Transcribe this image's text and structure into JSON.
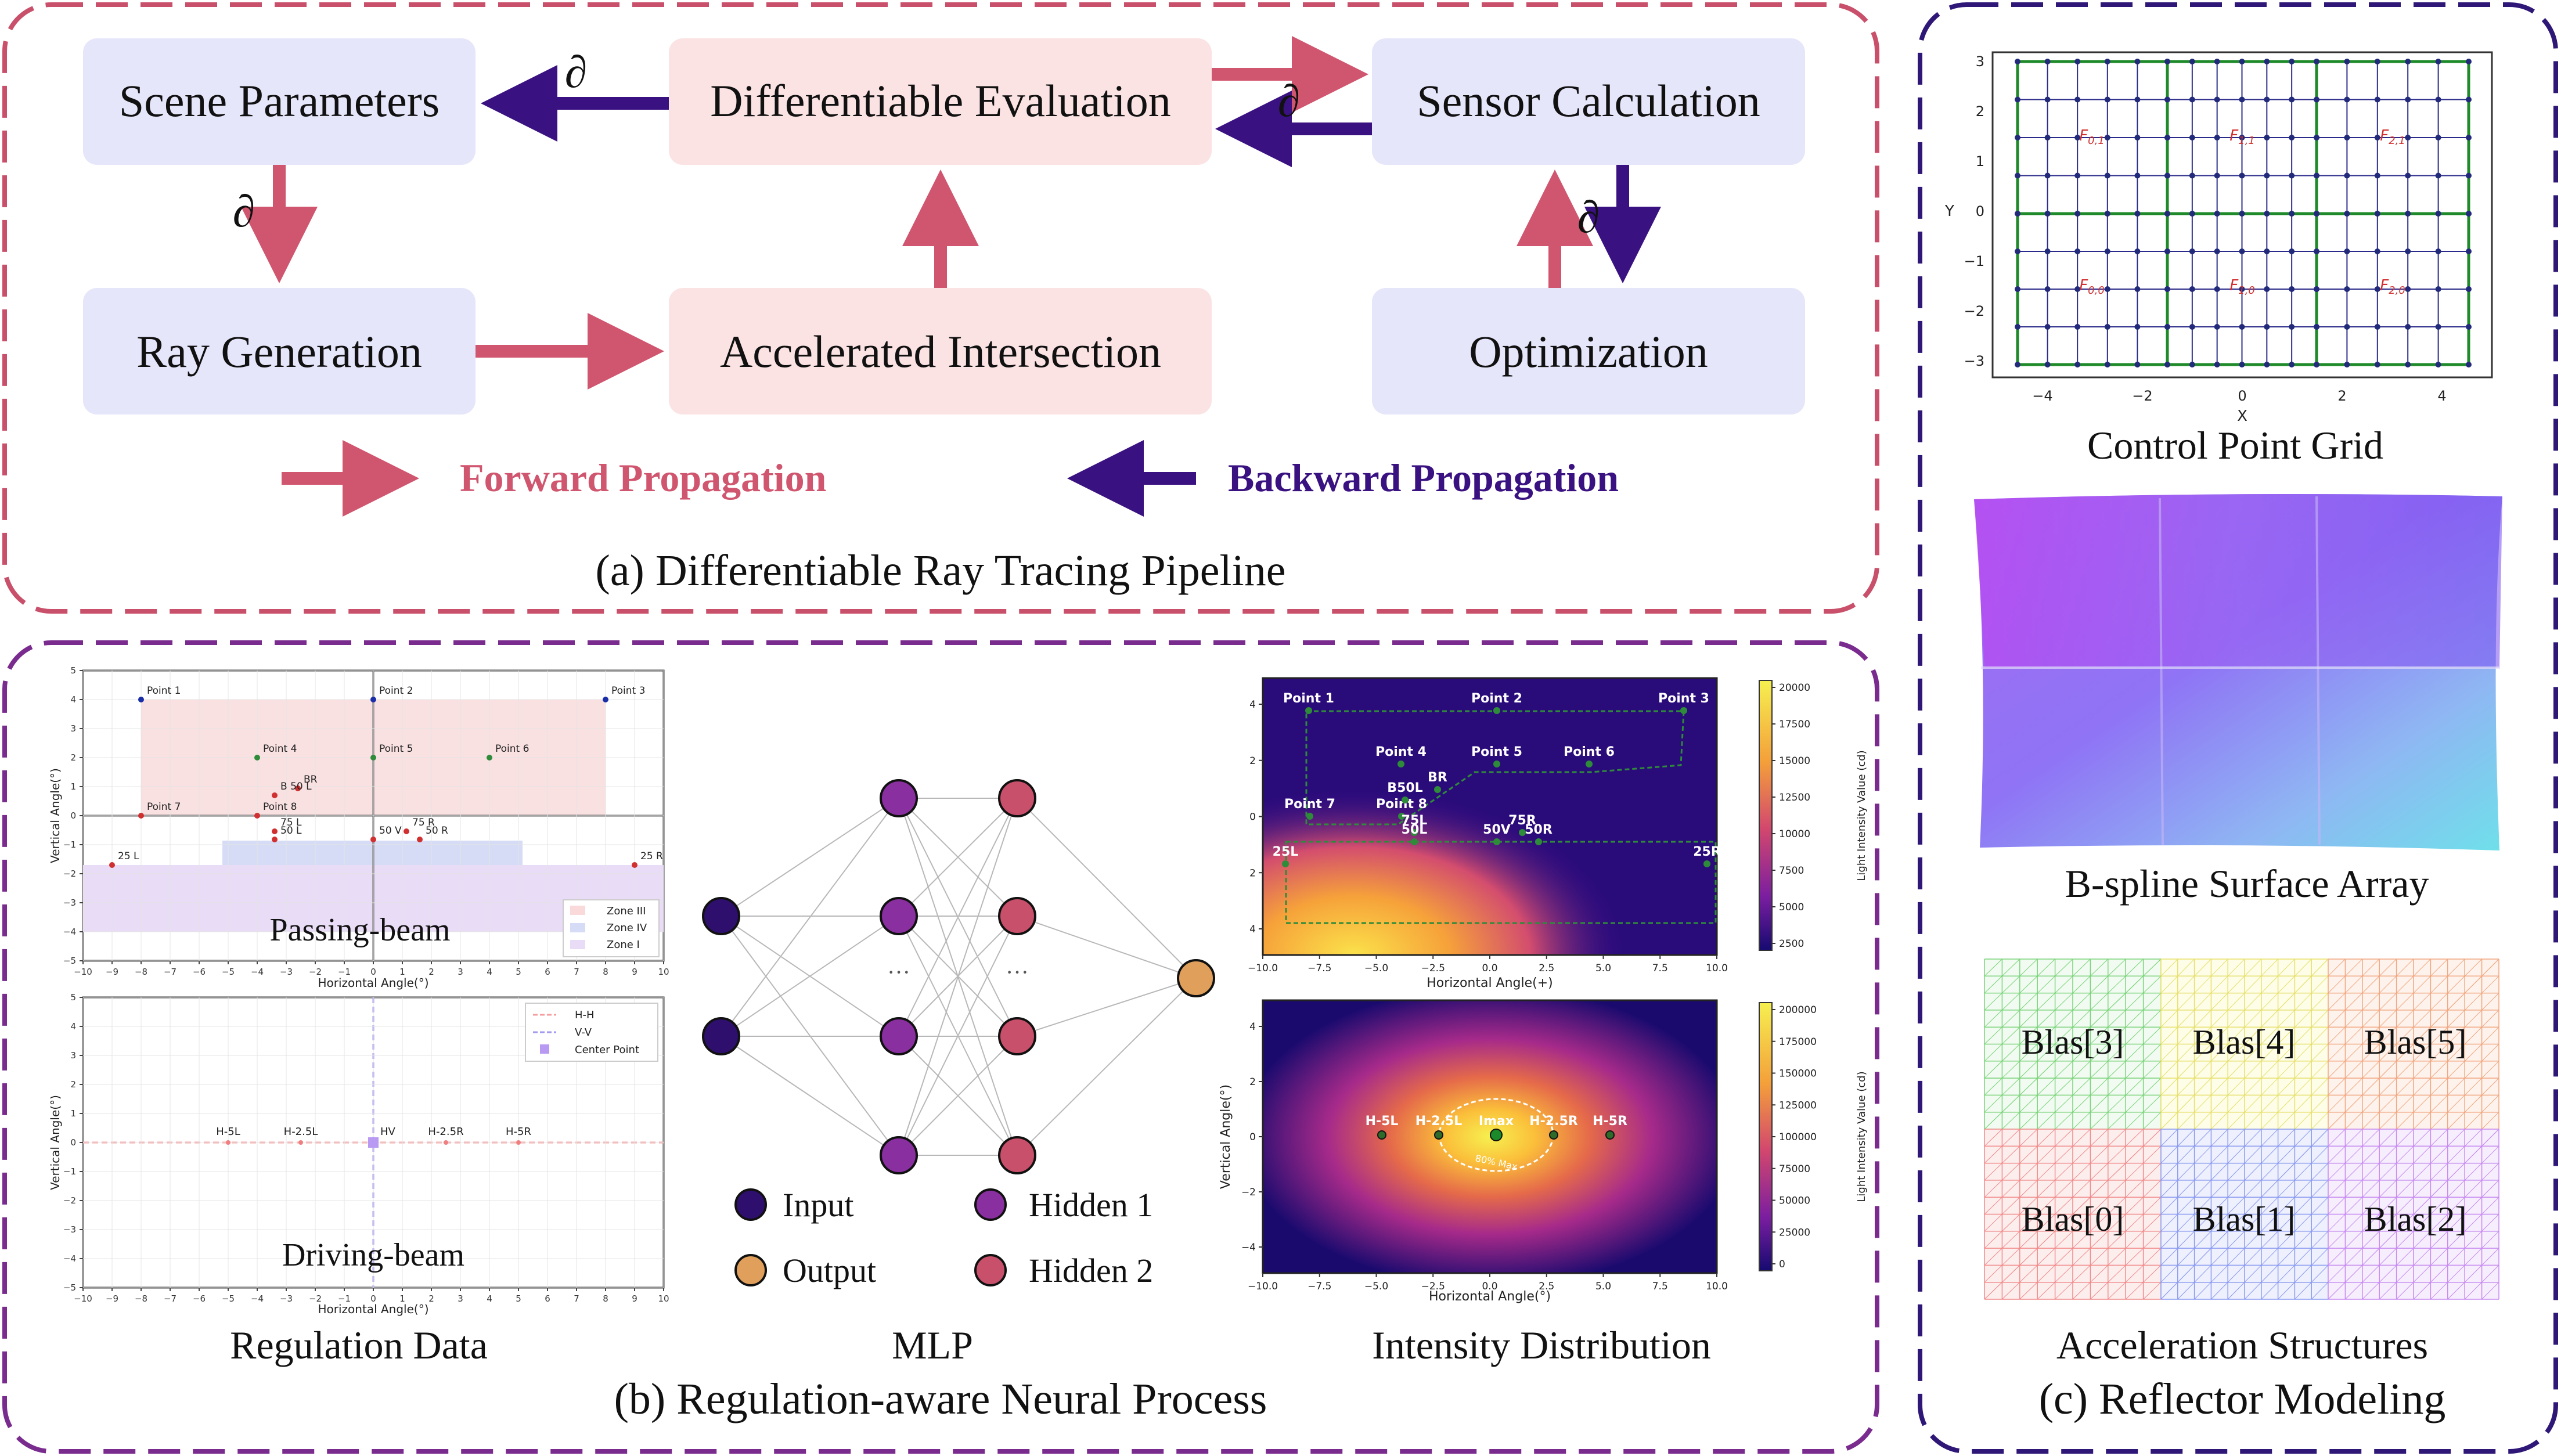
{
  "pipeline": {
    "caption": "(a) Differentiable Ray Tracing Pipeline",
    "boxes": {
      "scene": "Scene Parameters",
      "diff_eval": "Differentiable Evaluation",
      "sensor": "Sensor Calculation",
      "ray_gen": "Ray Generation",
      "accel": "Accelerated Intersection",
      "optim": "Optimization"
    },
    "partial_symbol": "∂",
    "legend": {
      "forward": "Forward Propagation",
      "backward": "Backward Propagation"
    },
    "colors": {
      "forward": "#d0556e",
      "backward": "#3a1180",
      "blue_box": "#e6e6fb",
      "pink_box": "#fbe3e4"
    }
  },
  "regulation": {
    "caption": "(b) Regulation-aware Neural Process",
    "regulation_data": {
      "label": "Regulation Data",
      "passing": {
        "title": "Passing-beam",
        "xlabel": "Horizontal Angle(°)",
        "ylabel": "Vertical Angle(°)",
        "xticks": [
          "−10",
          "−9",
          "−8",
          "−7",
          "−6",
          "−5",
          "−4",
          "−3",
          "−2",
          "−1",
          "0",
          "1",
          "2",
          "3",
          "4",
          "5",
          "6",
          "7",
          "8",
          "9",
          "10"
        ],
        "yticks": [
          "5",
          "4",
          "3",
          "2",
          "1",
          "0",
          "−1",
          "−2",
          "−3",
          "−4",
          "−5"
        ],
        "legend": [
          "Zone III",
          "Zone IV",
          "Zone I"
        ],
        "points": [
          "Point 1",
          "Point 2",
          "Point 3",
          "Point 4",
          "Point 5",
          "Point 6",
          "Point 7",
          "Point 8",
          "BR",
          "B 50 L",
          "75 L",
          "50 L",
          "50 V",
          "75 R",
          "50 R",
          "25 L",
          "25 R"
        ]
      },
      "driving": {
        "title": "Driving-beam",
        "xlabel": "Horizontal Angle(°)",
        "ylabel": "Vertical Angle(°)",
        "xticks": [
          "−10",
          "−9",
          "−8",
          "−7",
          "−6",
          "−5",
          "−4",
          "−3",
          "−2",
          "−1",
          "0",
          "1",
          "2",
          "3",
          "4",
          "5",
          "6",
          "7",
          "8",
          "9",
          "10"
        ],
        "yticks": [
          "5",
          "4",
          "3",
          "2",
          "1",
          "0",
          "−1",
          "−2",
          "−3",
          "−4",
          "−5"
        ],
        "legend": [
          "H-H",
          "V-V",
          "Center Point"
        ],
        "points": [
          "H-5L",
          "H-2.5L",
          "HV",
          "H-2.5R",
          "H-5R"
        ]
      }
    },
    "mlp": {
      "label": "MLP",
      "ellipsis": "···",
      "legend": {
        "input": "Input",
        "output": "Output",
        "hidden1": "Hidden 1",
        "hidden2": "Hidden 2"
      },
      "colors": {
        "input": "#2e0f6e",
        "output": "#e0a05c",
        "hidden1": "#8a2fa0",
        "hidden2": "#c9506a"
      }
    },
    "intensity": {
      "label": "Intensity Distribution",
      "top": {
        "xlabel": "Horizontal Angle(+)",
        "cbar_label": "Light Intensity Value (cd)",
        "cbar_ticks": [
          "20000",
          "17500",
          "15000",
          "12500",
          "10000",
          "7500",
          "5000",
          "2500"
        ],
        "xticks": [
          "−10.0",
          "−7.5",
          "−5.0",
          "−2.5",
          "0.0",
          "2.5",
          "5.0",
          "7.5",
          "10.0"
        ],
        "yticks": [
          "4",
          "2",
          "0",
          "2",
          "4"
        ],
        "points": [
          "Point 1",
          "Point 2",
          "Point 3",
          "Point 4",
          "Point 5",
          "Point 6",
          "Point 7",
          "Point 8",
          "B50L",
          "BR",
          "75L",
          "75R",
          "25L",
          "50L",
          "50V",
          "50R",
          "25R"
        ]
      },
      "bottom": {
        "xlabel": "Horizontal Angle(°)",
        "ylabel": "Vertical Angle(°)",
        "cbar_label": "Light Intensity Value (cd)",
        "cbar_ticks": [
          "200000",
          "175000",
          "150000",
          "125000",
          "100000",
          "75000",
          "50000",
          "25000",
          "0"
        ],
        "xticks": [
          "−10.0",
          "−7.5",
          "−5.0",
          "−2.5",
          "0.0",
          "2.5",
          "5.0",
          "7.5",
          "10.0"
        ],
        "yticks": [
          "4",
          "2",
          "0",
          "−2",
          "−4"
        ],
        "points": [
          "H-5L",
          "H-2.5L",
          "Imax",
          "H-2.5R",
          "H-5R"
        ],
        "contour": "80% Max"
      }
    }
  },
  "reflector": {
    "caption": "(c) Reflector Modeling",
    "control_grid": {
      "label": "Control Point Grid",
      "xlabel": "X",
      "ylabel": "Y",
      "xticks": [
        "−4",
        "−2",
        "0",
        "2",
        "4"
      ],
      "yticks": [
        "3",
        "2",
        "1",
        "0",
        "−1",
        "−2",
        "−3"
      ],
      "patches": [
        "F0,1",
        "F1,1",
        "F2,1",
        "F0,0",
        "F1,0",
        "F2,0"
      ]
    },
    "bspline": {
      "label": "B-spline Surface Array"
    },
    "accel": {
      "label": "Acceleration Structures",
      "blas": [
        "Blas[3]",
        "Blas[4]",
        "Blas[5]",
        "Blas[0]",
        "Blas[1]",
        "Blas[2]"
      ]
    }
  }
}
